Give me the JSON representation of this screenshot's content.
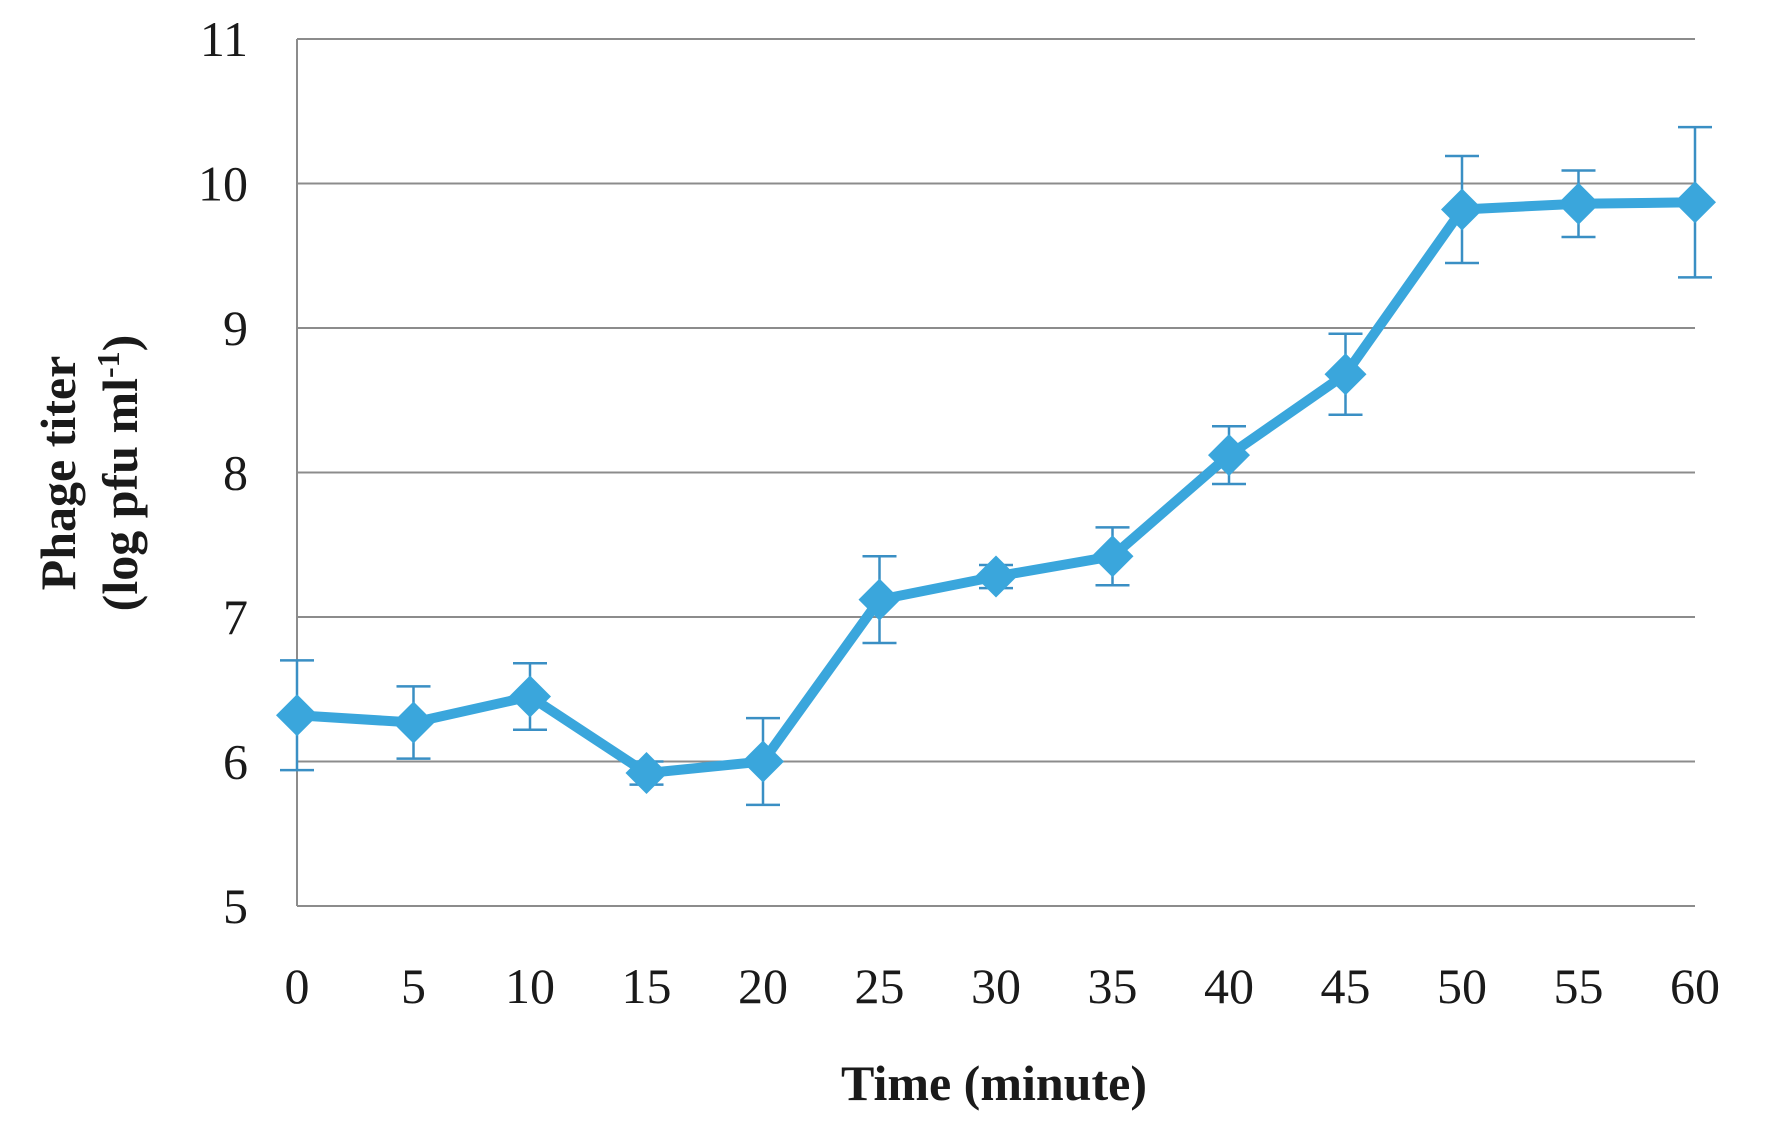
{
  "chart_data": {
    "type": "line",
    "title": "",
    "xlabel": "Time (minute)",
    "ylabel_line1": "Phage titer",
    "ylabel_line2_prefix": "(log pfu ml",
    "ylabel_superscript": "-1",
    "ylabel_line2_suffix": ")",
    "x": [
      0,
      5,
      10,
      15,
      20,
      25,
      30,
      35,
      40,
      45,
      50,
      55,
      60
    ],
    "x_tick_labels": [
      "0",
      "5",
      "10",
      "15",
      "20",
      "25",
      "30",
      "35",
      "40",
      "45",
      "50",
      "55",
      "60"
    ],
    "ylim": [
      5,
      11
    ],
    "y_ticks": [
      5,
      6,
      7,
      8,
      9,
      10,
      11
    ],
    "y_tick_labels": [
      "5",
      "6",
      "7",
      "8",
      "9",
      "10",
      "11"
    ],
    "grid": "horizontal",
    "legend": "none",
    "series": [
      {
        "values": [
          6.32,
          6.27,
          6.45,
          5.92,
          6.0,
          7.12,
          7.28,
          7.42,
          8.12,
          8.68,
          9.82,
          9.86,
          9.87
        ],
        "error": [
          0.38,
          0.25,
          0.23,
          0.08,
          0.3,
          0.3,
          0.08,
          0.2,
          0.2,
          0.28,
          0.37,
          0.23,
          0.52
        ],
        "color": "#3aa6dc",
        "marker": "diamond"
      }
    ],
    "colors": {
      "grid": "#8c8c8c",
      "axis": "#8c8c8c",
      "errorbar": "#3a8fc4"
    }
  }
}
